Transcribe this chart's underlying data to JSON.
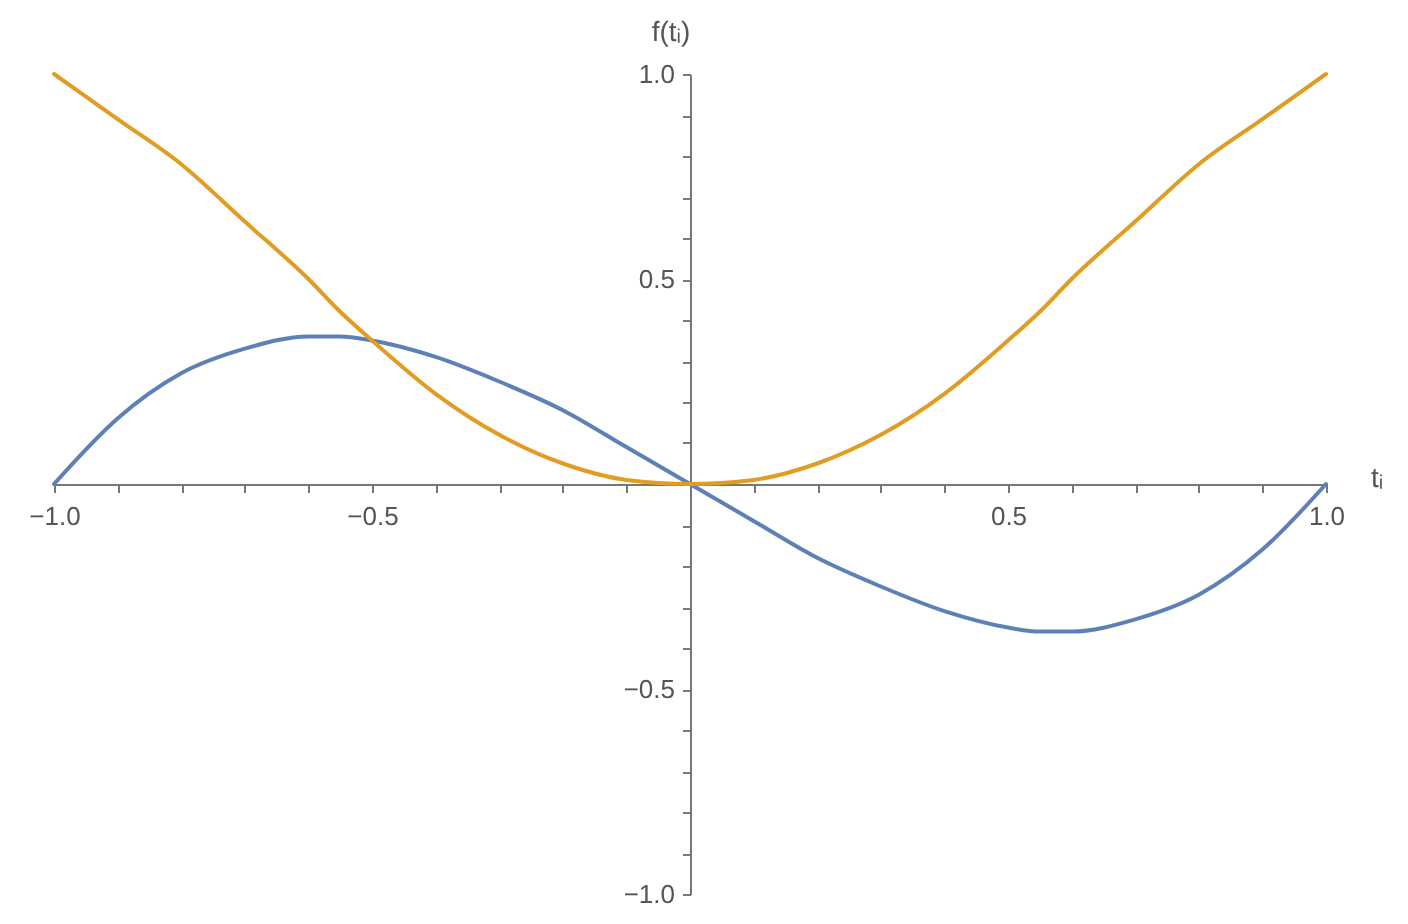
{
  "chart_data": {
    "type": "line",
    "xlabel": "tᵢ",
    "ylabel": "f(tᵢ)",
    "x": [
      -1,
      -0.9,
      -0.8,
      -0.7,
      -0.6,
      -0.55,
      -0.5,
      -0.4,
      -0.3,
      -0.2,
      -0.1,
      0,
      0.1,
      0.2,
      0.3,
      0.4,
      0.5,
      0.55,
      0.6,
      0.7,
      0.8,
      0.9,
      1
    ],
    "series": [
      {
        "color": "#5e81b5",
        "values": [
          0,
          0.16,
          0.27,
          0.33,
          0.36,
          0.36,
          0.35,
          0.31,
          0.25,
          0.18,
          0.09,
          0,
          -0.09,
          -0.18,
          -0.25,
          -0.31,
          -0.35,
          -0.36,
          -0.36,
          -0.33,
          -0.27,
          -0.16,
          0
        ]
      },
      {
        "color": "#e19c24",
        "values": [
          1,
          0.89,
          0.78,
          0.64,
          0.5,
          0.42,
          0.35,
          0.22,
          0.12,
          0.05,
          0.01,
          0,
          0.01,
          0.05,
          0.12,
          0.22,
          0.35,
          0.42,
          0.5,
          0.64,
          0.78,
          0.89,
          1
        ]
      }
    ],
    "xlim": [
      -1,
      1
    ],
    "ylim": [
      -1,
      1
    ],
    "xticks": [
      {
        "value": -1,
        "label": "−1.0"
      },
      {
        "value": -0.9,
        "label": null
      },
      {
        "value": -0.8,
        "label": null
      },
      {
        "value": -0.7,
        "label": null
      },
      {
        "value": -0.6,
        "label": null
      },
      {
        "value": -0.5,
        "label": "−0.5"
      },
      {
        "value": -0.4,
        "label": null
      },
      {
        "value": -0.3,
        "label": null
      },
      {
        "value": -0.2,
        "label": null
      },
      {
        "value": -0.1,
        "label": null
      },
      {
        "value": 0.1,
        "label": null
      },
      {
        "value": 0.2,
        "label": null
      },
      {
        "value": 0.3,
        "label": null
      },
      {
        "value": 0.4,
        "label": null
      },
      {
        "value": 0.5,
        "label": "0.5"
      },
      {
        "value": 0.6,
        "label": null
      },
      {
        "value": 0.7,
        "label": null
      },
      {
        "value": 0.8,
        "label": null
      },
      {
        "value": 0.9,
        "label": null
      },
      {
        "value": 1,
        "label": "1.0"
      }
    ],
    "yticks": [
      {
        "value": -1,
        "label": "−1.0"
      },
      {
        "value": -0.9,
        "label": null
      },
      {
        "value": -0.8,
        "label": null
      },
      {
        "value": -0.7,
        "label": null
      },
      {
        "value": -0.6,
        "label": null
      },
      {
        "value": -0.5,
        "label": "−0.5"
      },
      {
        "value": -0.4,
        "label": null
      },
      {
        "value": -0.3,
        "label": null
      },
      {
        "value": -0.2,
        "label": null
      },
      {
        "value": -0.1,
        "label": null
      },
      {
        "value": 0.1,
        "label": null
      },
      {
        "value": 0.2,
        "label": null
      },
      {
        "value": 0.3,
        "label": null
      },
      {
        "value": 0.4,
        "label": null
      },
      {
        "value": 0.5,
        "label": "0.5"
      },
      {
        "value": 0.6,
        "label": null
      },
      {
        "value": 0.7,
        "label": null
      },
      {
        "value": 0.8,
        "label": null
      },
      {
        "value": 0.9,
        "label": null
      },
      {
        "value": 1,
        "label": "1.0"
      }
    ],
    "marker": "none",
    "line_style": "solid"
  }
}
